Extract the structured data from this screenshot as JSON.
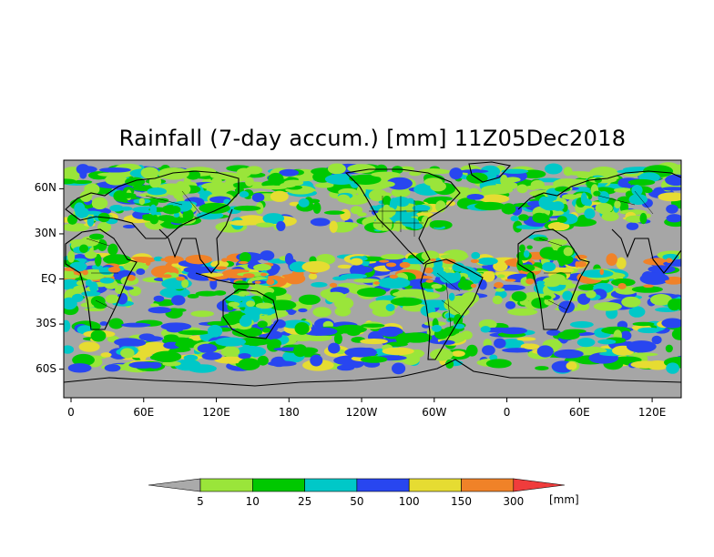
{
  "title": "Rainfall (7-day accum.) [mm] 11Z05Dec2018",
  "lat_labels": [
    "60N",
    "30N",
    "EQ",
    "30S",
    "60S"
  ],
  "lon_labels": [
    "0",
    "60E",
    "120E",
    "180",
    "120W",
    "60W",
    "0",
    "60E",
    "120E"
  ],
  "colorbar": {
    "unit": "[mm]",
    "ticks": [
      "5",
      "10",
      "25",
      "50",
      "100",
      "150",
      "300"
    ],
    "colors": [
      "#aaaaaa",
      "#9ae53a",
      "#00c800",
      "#00c8c8",
      "#2846f0",
      "#e6dc32",
      "#f08228",
      "#f03c3c"
    ]
  },
  "colors": {
    "ocean_background": "#a6a6a6",
    "coastline": "#000000"
  }
}
